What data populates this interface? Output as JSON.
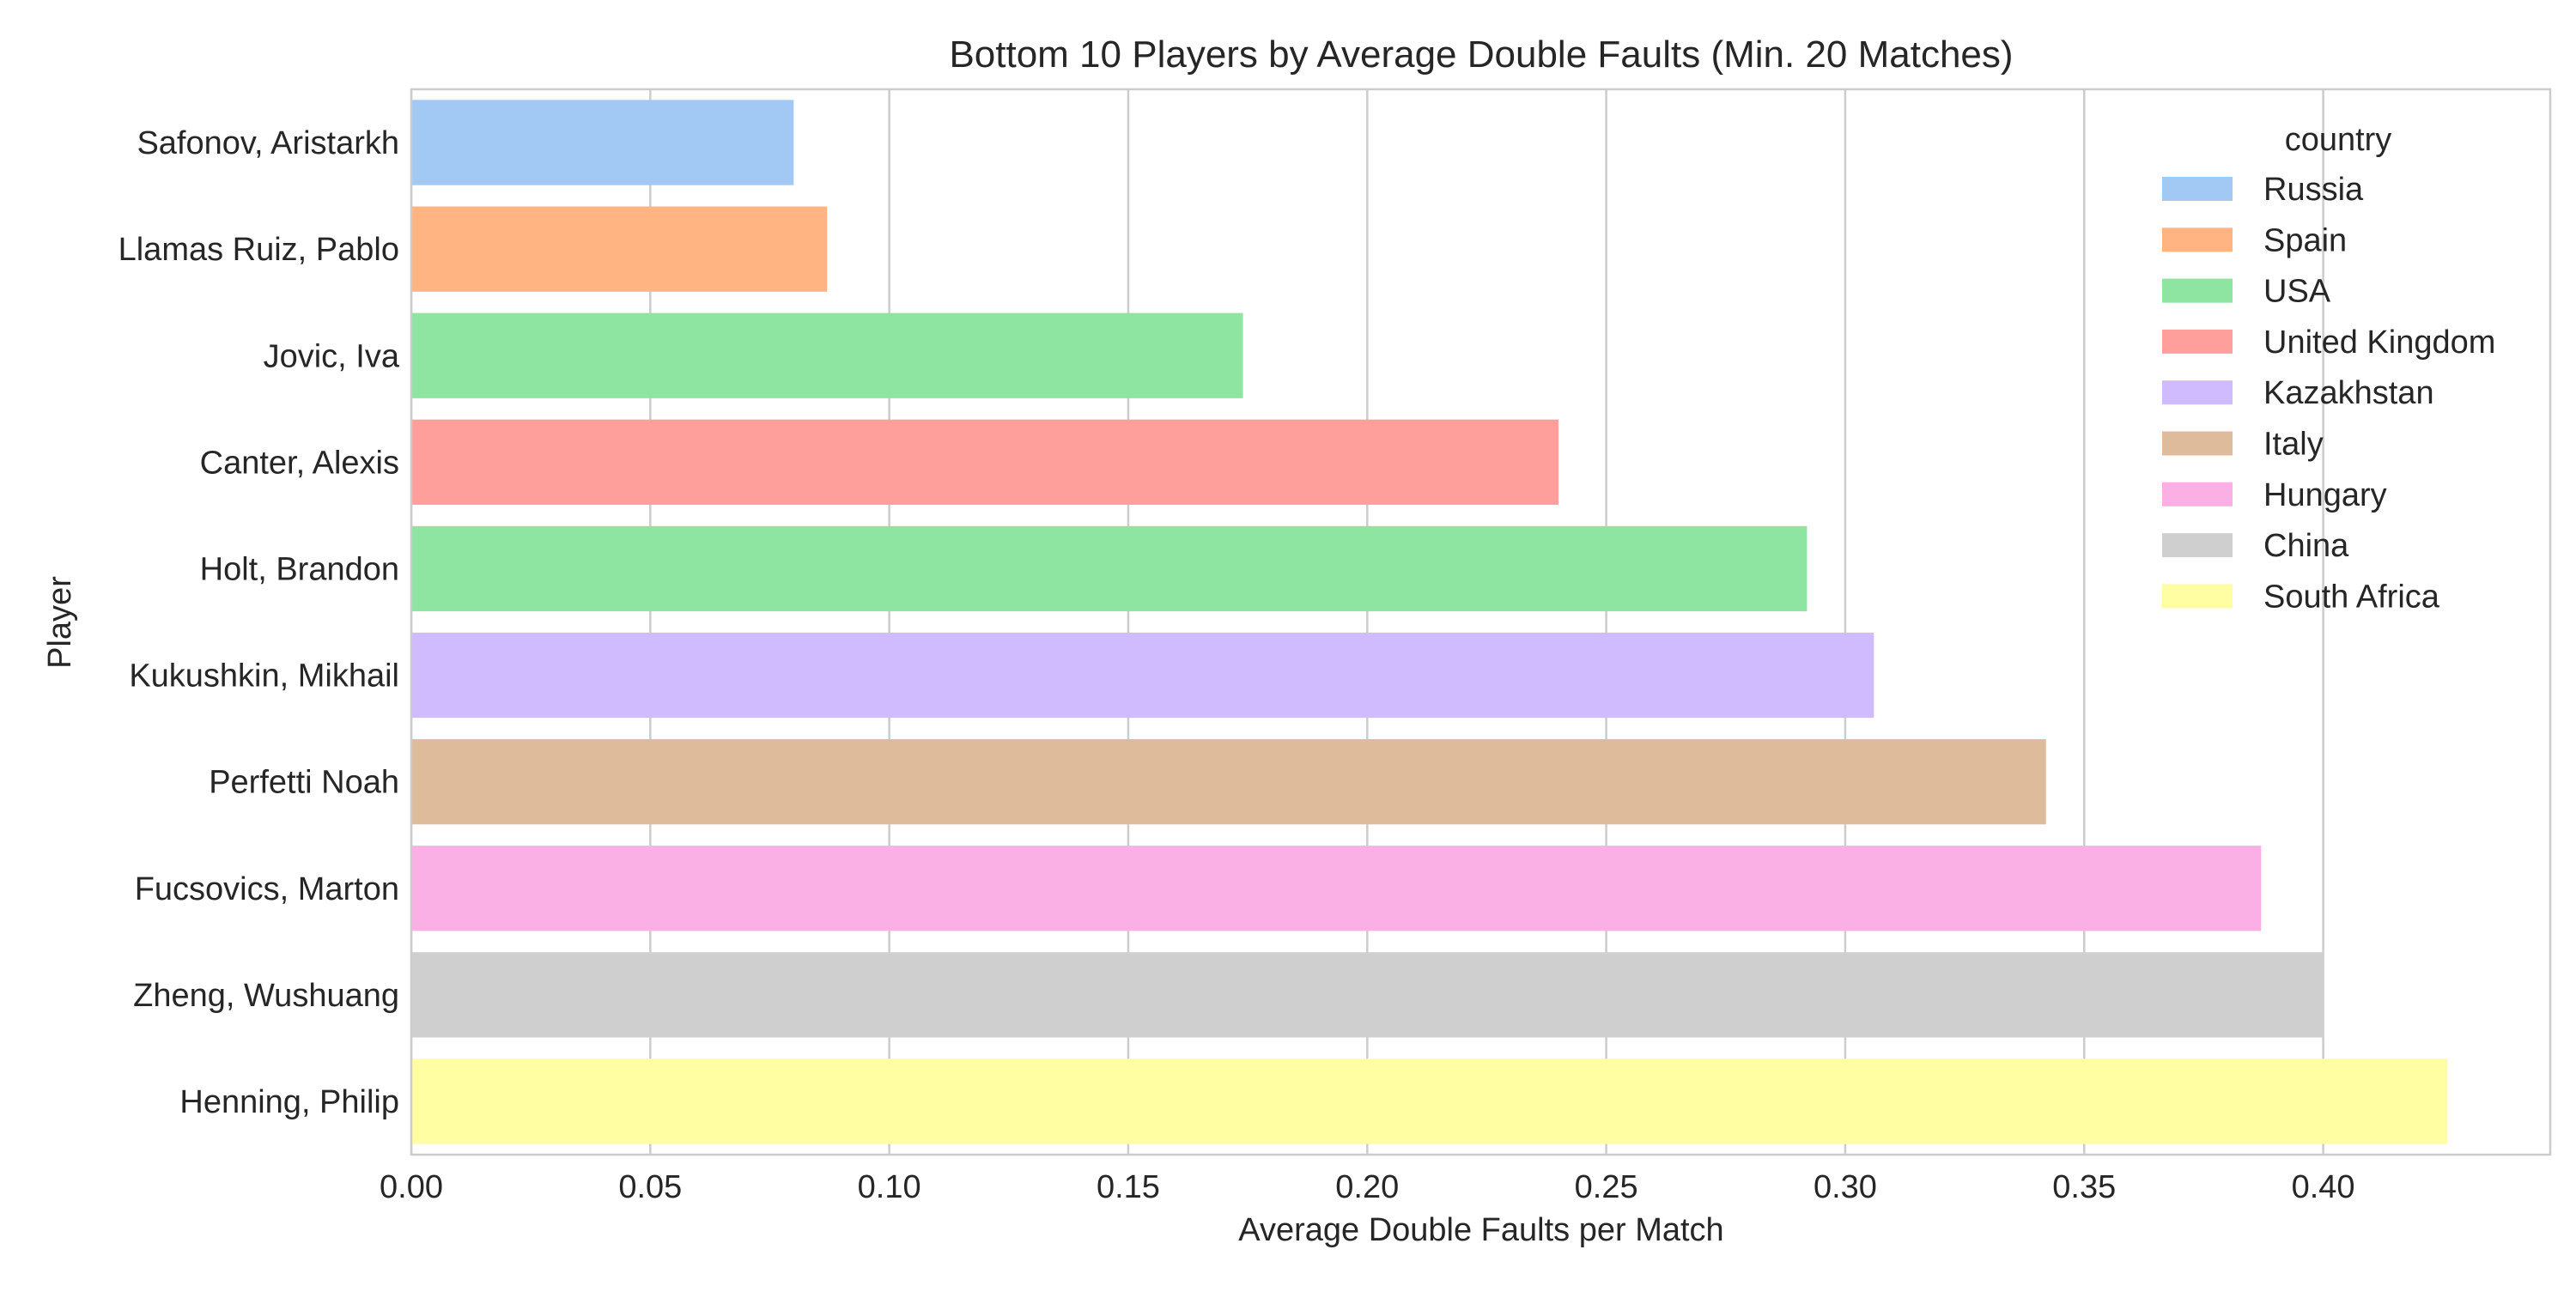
{
  "chart_data": {
    "type": "bar",
    "orientation": "horizontal",
    "title": "Bottom 10 Players by Average Double Faults (Min. 20 Matches)",
    "xlabel": "Average Double Faults per Match",
    "ylabel": "Player",
    "xlim": [
      0,
      0.4475
    ],
    "xticks": [
      0.0,
      0.05,
      0.1,
      0.15,
      0.2,
      0.25,
      0.3,
      0.35,
      0.4
    ],
    "xtick_labels": [
      "0.00",
      "0.05",
      "0.10",
      "0.15",
      "0.20",
      "0.25",
      "0.30",
      "0.35",
      "0.40"
    ],
    "grid": "vertical",
    "legend_title": "country",
    "legend_placement": "top-right",
    "categories": [
      "Safonov, Aristarkh",
      "Llamas Ruiz, Pablo",
      "Jovic, Iva",
      "Canter, Alexis",
      "Holt, Brandon",
      "Kukushkin, Mikhail",
      "Perfetti Noah",
      "Fucsovics, Marton",
      "Zheng, Wushuang",
      "Henning, Philip"
    ],
    "values": [
      0.08,
      0.087,
      0.174,
      0.24,
      0.292,
      0.306,
      0.342,
      0.387,
      0.4,
      0.426
    ],
    "bar_country": [
      "Russia",
      "Spain",
      "USA",
      "United Kingdom",
      "USA",
      "Kazakhstan",
      "Italy",
      "Hungary",
      "China",
      "South Africa"
    ],
    "legend": [
      {
        "label": "Russia",
        "color": "#a1c9f4"
      },
      {
        "label": "Spain",
        "color": "#ffb482"
      },
      {
        "label": "USA",
        "color": "#8de5a1"
      },
      {
        "label": "United Kingdom",
        "color": "#ff9f9b"
      },
      {
        "label": "Kazakhstan",
        "color": "#d0bbff"
      },
      {
        "label": "Italy",
        "color": "#debb9b"
      },
      {
        "label": "Hungary",
        "color": "#fab0e4"
      },
      {
        "label": "China",
        "color": "#cfcfcf"
      },
      {
        "label": "South Africa",
        "color": "#fffea3"
      }
    ]
  }
}
